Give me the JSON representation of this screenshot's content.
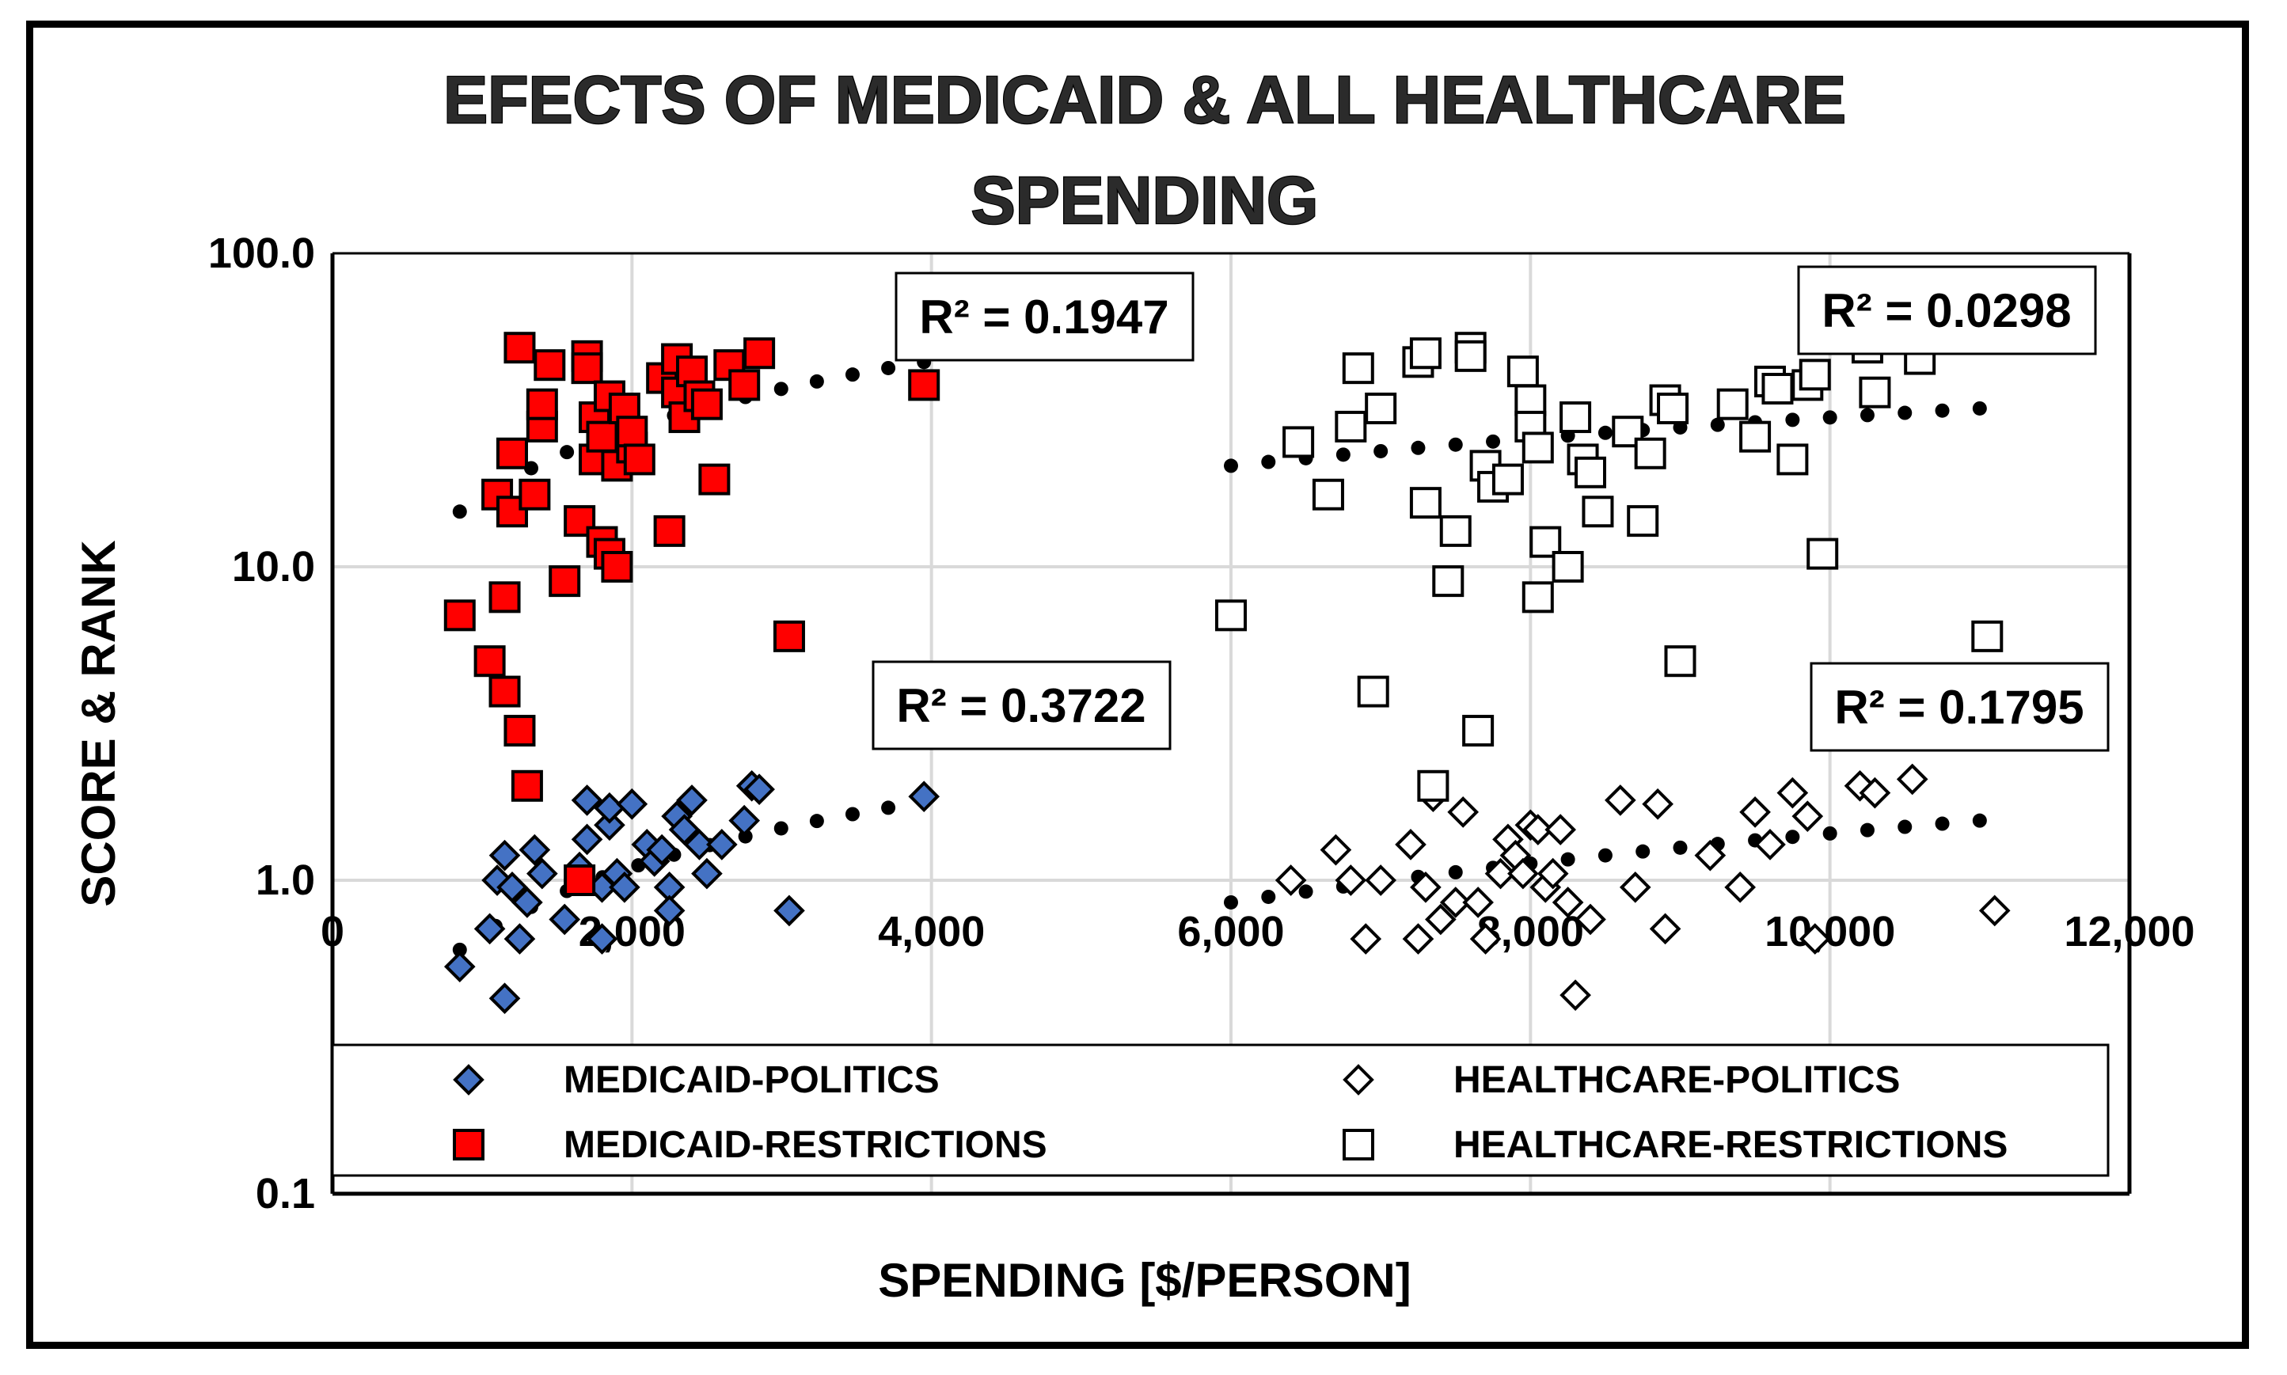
{
  "chart_data": {
    "type": "scatter",
    "title": "EFECTS OF MEDICAID & ALL HEALTHCARE SPENDING",
    "title_lines": [
      "EFECTS OF MEDICAID & ALL HEALTHCARE",
      "SPENDING"
    ],
    "xlabel": "SPENDING [$/PERSON]",
    "ylabel": "SCORE & RANK",
    "xlim": [
      0,
      12000
    ],
    "ylim": [
      0.1,
      100
    ],
    "yscale": "log",
    "grid": true,
    "legend_position": "bottom",
    "x_ticks": [
      0,
      2000,
      4000,
      6000,
      8000,
      10000,
      12000
    ],
    "x_tick_labels": [
      "0",
      "2,000",
      "4,000",
      "6,000",
      "8,000",
      "10,000",
      "12,000"
    ],
    "y_ticks": [
      0.1,
      1,
      10,
      100
    ],
    "y_tick_labels": [
      "0.1",
      "1.0",
      "10.0",
      "100.0"
    ],
    "series": [
      {
        "name": "MEDICAID-POLITICS",
        "marker": "diamond",
        "color": "#4472C4",
        "points": [
          [
            850,
            0.53
          ],
          [
            1100,
            1.0
          ],
          [
            1150,
            1.2
          ],
          [
            1050,
            0.7
          ],
          [
            1200,
            0.95
          ],
          [
            1250,
            0.65
          ],
          [
            1300,
            0.85
          ],
          [
            1350,
            1.25
          ],
          [
            1400,
            1.05
          ],
          [
            1150,
            0.42
          ],
          [
            1550,
            0.75
          ],
          [
            1650,
            1.1
          ],
          [
            1700,
            1.35
          ],
          [
            1700,
            1.8
          ],
          [
            1800,
            0.95
          ],
          [
            1800,
            0.65
          ],
          [
            1850,
            1.5
          ],
          [
            1850,
            1.7
          ],
          [
            1900,
            1.05
          ],
          [
            1950,
            0.95
          ],
          [
            2000,
            1.75
          ],
          [
            2100,
            1.3
          ],
          [
            2150,
            1.15
          ],
          [
            2200,
            1.25
          ],
          [
            2250,
            0.95
          ],
          [
            2250,
            0.8
          ],
          [
            2300,
            1.6
          ],
          [
            2350,
            1.45
          ],
          [
            2400,
            1.8
          ],
          [
            2450,
            1.3
          ],
          [
            2500,
            1.05
          ],
          [
            2600,
            1.3
          ],
          [
            2750,
            1.55
          ],
          [
            2800,
            2.0
          ],
          [
            2850,
            1.95
          ],
          [
            3050,
            0.8
          ],
          [
            3950,
            1.85
          ]
        ],
        "trendline": {
          "r2_label": "R² = 0.3722",
          "y_at_850": 0.6,
          "y_at_3950": 1.78
        }
      },
      {
        "name": "MEDICAID-RESTRICTIONS",
        "marker": "square",
        "color": "#FF0000",
        "points": [
          [
            850,
            7
          ],
          [
            1050,
            5
          ],
          [
            1100,
            17
          ],
          [
            1150,
            8
          ],
          [
            1150,
            4
          ],
          [
            1200,
            23
          ],
          [
            1200,
            15
          ],
          [
            1250,
            50
          ],
          [
            1250,
            3
          ],
          [
            1300,
            2
          ],
          [
            1350,
            17
          ],
          [
            1400,
            28
          ],
          [
            1400,
            33
          ],
          [
            1450,
            44
          ],
          [
            1550,
            9
          ],
          [
            1650,
            14
          ],
          [
            1650,
            1.0
          ],
          [
            1700,
            47
          ],
          [
            1700,
            43
          ],
          [
            1750,
            22
          ],
          [
            1750,
            30
          ],
          [
            1800,
            12
          ],
          [
            1800,
            26
          ],
          [
            1850,
            11
          ],
          [
            1850,
            35
          ],
          [
            1900,
            10
          ],
          [
            1900,
            21
          ],
          [
            1950,
            32
          ],
          [
            2000,
            24
          ],
          [
            2000,
            27
          ],
          [
            2050,
            22
          ],
          [
            2200,
            40
          ],
          [
            2250,
            13
          ],
          [
            2300,
            46
          ],
          [
            2300,
            36
          ],
          [
            2350,
            30
          ],
          [
            2400,
            42
          ],
          [
            2450,
            35
          ],
          [
            2500,
            33
          ],
          [
            2550,
            19
          ],
          [
            2650,
            44
          ],
          [
            2750,
            38
          ],
          [
            2850,
            48
          ],
          [
            3050,
            6
          ],
          [
            3950,
            38
          ]
        ],
        "trendline": {
          "r2_label": "R² = 0.1947",
          "y_at_850": 15,
          "y_at_3950": 45
        }
      },
      {
        "name": "HEALTHCARE-POLITICS",
        "marker": "diamond-open",
        "color": "#000000",
        "points": [
          [
            6400,
            1.0
          ],
          [
            6700,
            1.25
          ],
          [
            6800,
            1.0
          ],
          [
            6900,
            0.65
          ],
          [
            7000,
            1.0
          ],
          [
            7200,
            1.3
          ],
          [
            7250,
            0.65
          ],
          [
            7300,
            0.95
          ],
          [
            7350,
            1.85
          ],
          [
            7400,
            0.75
          ],
          [
            7500,
            0.85
          ],
          [
            7550,
            1.65
          ],
          [
            7650,
            0.85
          ],
          [
            7700,
            0.65
          ],
          [
            7800,
            1.05
          ],
          [
            7850,
            1.35
          ],
          [
            7900,
            1.2
          ],
          [
            7950,
            1.05
          ],
          [
            8000,
            1.5
          ],
          [
            8050,
            1.45
          ],
          [
            8100,
            0.95
          ],
          [
            8150,
            1.05
          ],
          [
            8200,
            1.45
          ],
          [
            8250,
            0.85
          ],
          [
            8300,
            0.43
          ],
          [
            8400,
            0.75
          ],
          [
            8600,
            1.8
          ],
          [
            8700,
            0.95
          ],
          [
            8850,
            1.75
          ],
          [
            8900,
            0.7
          ],
          [
            9200,
            1.2
          ],
          [
            9400,
            0.95
          ],
          [
            9500,
            1.65
          ],
          [
            9600,
            1.3
          ],
          [
            9750,
            1.9
          ],
          [
            9850,
            1.6
          ],
          [
            9900,
            0.65
          ],
          [
            10200,
            2.0
          ],
          [
            10300,
            1.9
          ],
          [
            10550,
            2.1
          ],
          [
            11100,
            0.8
          ]
        ],
        "trendline": {
          "r2_label": "R² = 0.1795",
          "y_at_6000": 0.85,
          "y_at_11000": 1.55
        }
      },
      {
        "name": "HEALTHCARE-RESTRICTIONS",
        "marker": "square-open",
        "color": "#000000",
        "points": [
          [
            6000,
            7
          ],
          [
            6450,
            25
          ],
          [
            6650,
            17
          ],
          [
            6800,
            28
          ],
          [
            6850,
            43
          ],
          [
            6950,
            4
          ],
          [
            7000,
            32
          ],
          [
            7250,
            45
          ],
          [
            7300,
            48
          ],
          [
            7300,
            16
          ],
          [
            7350,
            2
          ],
          [
            7450,
            9
          ],
          [
            7500,
            13
          ],
          [
            7600,
            50
          ],
          [
            7600,
            47
          ],
          [
            7650,
            3
          ],
          [
            7700,
            21
          ],
          [
            7750,
            18
          ],
          [
            7850,
            19
          ],
          [
            7950,
            42
          ],
          [
            8000,
            34
          ],
          [
            8000,
            28
          ],
          [
            8050,
            24
          ],
          [
            8050,
            8
          ],
          [
            8100,
            12
          ],
          [
            8250,
            10
          ],
          [
            8300,
            30
          ],
          [
            8350,
            22
          ],
          [
            8400,
            20
          ],
          [
            8450,
            15
          ],
          [
            8650,
            27
          ],
          [
            8750,
            14
          ],
          [
            8800,
            23
          ],
          [
            8900,
            34
          ],
          [
            8950,
            32
          ],
          [
            9000,
            5
          ],
          [
            9350,
            33
          ],
          [
            9500,
            26
          ],
          [
            9600,
            39
          ],
          [
            9650,
            37
          ],
          [
            9750,
            22
          ],
          [
            9850,
            38
          ],
          [
            9900,
            41
          ],
          [
            9950,
            11
          ],
          [
            10250,
            50
          ],
          [
            10300,
            36
          ],
          [
            10600,
            46
          ],
          [
            11050,
            6
          ]
        ],
        "trendline": {
          "r2_label": "R² = 0.0298",
          "y_at_6000": 21,
          "y_at_11000": 32
        }
      }
    ]
  }
}
